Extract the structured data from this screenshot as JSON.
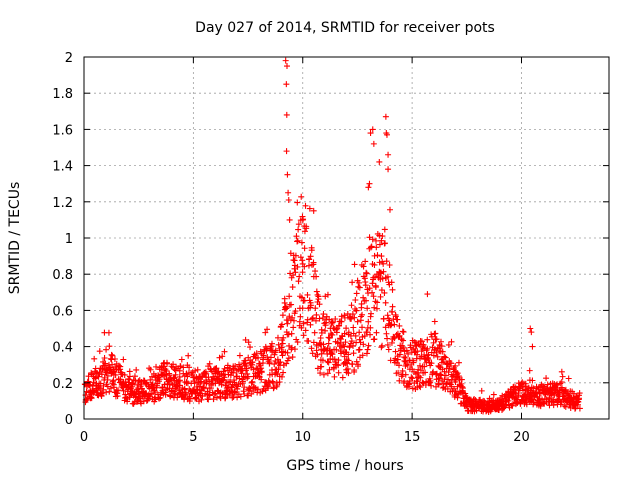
{
  "chart_data": {
    "type": "scatter",
    "title": "Day 027 of 2014, SRMTID for receiver pots",
    "xlabel": "GPS time / hours",
    "ylabel": "SRMTID / TECUs",
    "xlim": [
      0,
      24
    ],
    "ylim": [
      0,
      2
    ],
    "xticks": [
      0,
      5,
      10,
      15,
      20
    ],
    "xtick_labels": [
      "0",
      "5",
      "10",
      "15",
      "20"
    ],
    "yticks": [
      0,
      0.2,
      0.4,
      0.6,
      0.8,
      1,
      1.2,
      1.4,
      1.6,
      1.8,
      2
    ],
    "ytick_labels": [
      "0",
      "0.2",
      "0.4",
      "0.6",
      "0.8",
      "1",
      "1.2",
      "1.4",
      "1.6",
      "1.8",
      "2"
    ],
    "grid": true,
    "marker": "+",
    "color": "#ff0000",
    "series_profile": {
      "name": "SRMTID",
      "x_start": 0.05,
      "x_end": 22.7,
      "x_step": 0.03,
      "baseline": [
        [
          0.0,
          0.15
        ],
        [
          0.8,
          0.22
        ],
        [
          1.2,
          0.26
        ],
        [
          2.0,
          0.15
        ],
        [
          3.0,
          0.15
        ],
        [
          3.6,
          0.22
        ],
        [
          4.5,
          0.2
        ],
        [
          5.0,
          0.17
        ],
        [
          6.0,
          0.2
        ],
        [
          7.0,
          0.21
        ],
        [
          8.0,
          0.26
        ],
        [
          8.8,
          0.3
        ],
        [
          9.3,
          0.5
        ],
        [
          9.7,
          0.7
        ],
        [
          10.0,
          0.8
        ],
        [
          10.3,
          0.72
        ],
        [
          10.8,
          0.42
        ],
        [
          11.5,
          0.38
        ],
        [
          12.3,
          0.45
        ],
        [
          12.8,
          0.62
        ],
        [
          13.3,
          0.7
        ],
        [
          13.8,
          0.72
        ],
        [
          14.2,
          0.42
        ],
        [
          14.8,
          0.3
        ],
        [
          15.5,
          0.3
        ],
        [
          16.0,
          0.34
        ],
        [
          16.5,
          0.25
        ],
        [
          17.0,
          0.2
        ],
        [
          17.5,
          0.08
        ],
        [
          18.5,
          0.07
        ],
        [
          19.0,
          0.08
        ],
        [
          20.0,
          0.15
        ],
        [
          20.5,
          0.12
        ],
        [
          21.5,
          0.14
        ],
        [
          22.7,
          0.09
        ]
      ],
      "spikes": [
        [
          9.22,
          1.98
        ],
        [
          9.28,
          1.95
        ],
        [
          9.25,
          1.85
        ],
        [
          9.27,
          1.68
        ],
        [
          9.26,
          1.48
        ],
        [
          9.3,
          1.35
        ],
        [
          9.33,
          1.25
        ],
        [
          9.36,
          1.21
        ],
        [
          9.4,
          1.1
        ],
        [
          10.0,
          1.1
        ],
        [
          10.5,
          1.15
        ],
        [
          13.1,
          1.58
        ],
        [
          13.2,
          1.6
        ],
        [
          13.25,
          1.52
        ],
        [
          13.8,
          1.67
        ],
        [
          13.82,
          1.58
        ],
        [
          13.85,
          1.57
        ],
        [
          13.9,
          1.46
        ],
        [
          13.5,
          1.42
        ],
        [
          13.0,
          1.28
        ],
        [
          13.05,
          1.3
        ],
        [
          13.9,
          1.38
        ],
        [
          15.7,
          0.69
        ],
        [
          20.4,
          0.5
        ],
        [
          20.45,
          0.48
        ],
        [
          20.5,
          0.4
        ]
      ]
    }
  }
}
